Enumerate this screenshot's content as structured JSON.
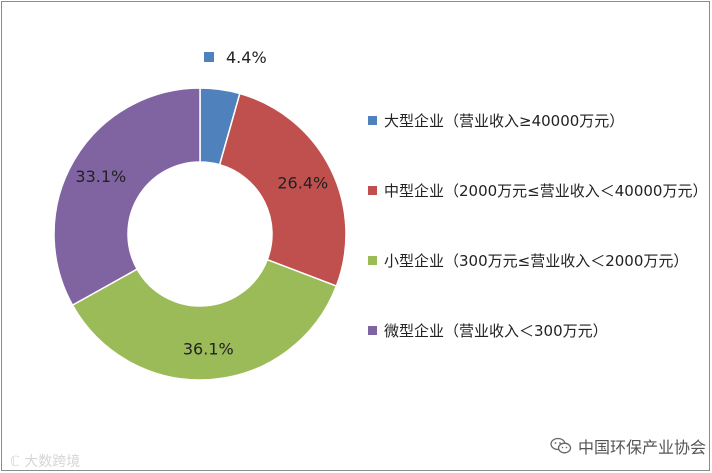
{
  "chart_data": {
    "type": "pie",
    "donut": true,
    "categories": [
      "大型企业（营业收入≥40000万元）",
      "中型企业（2000万元≤营业收入＜40000万元）",
      "小型企业（300万元≤营业收入＜2000万元）",
      "微型企业（营业收入＜300万元）"
    ],
    "values": [
      4.4,
      26.4,
      36.1,
      33.1
    ],
    "data_labels": [
      "4.4%",
      "26.4%",
      "36.1%",
      "33.1%"
    ],
    "colors": [
      "#4f81bd",
      "#c0504d",
      "#9bbb59",
      "#8064a2"
    ],
    "legend_position": "right"
  },
  "watermarks": {
    "left": "大数跨境",
    "right": "中国环保产业协会"
  },
  "icons": {
    "watermark_left": "logo-mark-icon",
    "watermark_right": "wechat-icon"
  }
}
